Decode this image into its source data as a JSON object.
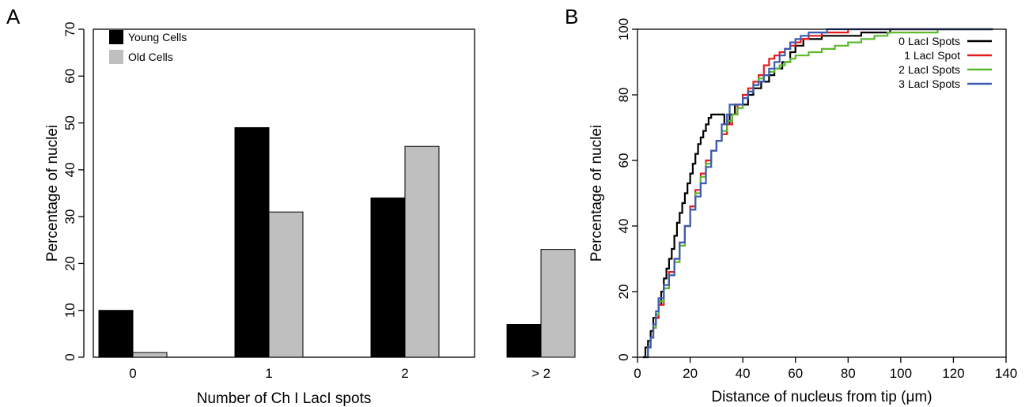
{
  "panels": {
    "a_label": "A",
    "b_label": "B"
  },
  "chart_data": [
    {
      "type": "bar",
      "title": "",
      "xlabel": "Number of Ch I LacI spots",
      "ylabel": "Percentage of nuclei",
      "categories": [
        "0",
        "1",
        "2",
        "> 2"
      ],
      "series": [
        {
          "name": "Young Cells",
          "color": "#000000",
          "values": [
            10,
            49,
            34,
            7
          ]
        },
        {
          "name": "Old Cells",
          "color": "#bfbfbf",
          "values": [
            1,
            31,
            45,
            23
          ]
        }
      ],
      "ylim": [
        0,
        70
      ],
      "yticks": [
        0,
        10,
        20,
        30,
        40,
        50,
        60,
        70
      ],
      "legend": "top-left",
      "grid": false
    },
    {
      "type": "line",
      "step": true,
      "title": "",
      "xlabel": "Distance of nucleus from tip (μm)",
      "ylabel": "Percentage of nuclei",
      "xlim": [
        0,
        140
      ],
      "ylim": [
        0,
        100
      ],
      "xticks": [
        0,
        20,
        40,
        60,
        80,
        100,
        120,
        140
      ],
      "yticks": [
        0,
        20,
        40,
        60,
        80,
        100
      ],
      "legend": "top-right",
      "grid": false,
      "series": [
        {
          "name": "0 LacI Spots",
          "color": "#000000",
          "points": [
            [
              2,
              0
            ],
            [
              3,
              3
            ],
            [
              4,
              5
            ],
            [
              5,
              8
            ],
            [
              6,
              12
            ],
            [
              8,
              16
            ],
            [
              9,
              20
            ],
            [
              10,
              24
            ],
            [
              11,
              27
            ],
            [
              12,
              30
            ],
            [
              13,
              33
            ],
            [
              14,
              37
            ],
            [
              15,
              41
            ],
            [
              16,
              44
            ],
            [
              17,
              47
            ],
            [
              18,
              50
            ],
            [
              19,
              53
            ],
            [
              20,
              56
            ],
            [
              21,
              59
            ],
            [
              22,
              62
            ],
            [
              23,
              65
            ],
            [
              24,
              67
            ],
            [
              25,
              69
            ],
            [
              26,
              71
            ],
            [
              27,
              73
            ],
            [
              28,
              74
            ],
            [
              32,
              74
            ],
            [
              33,
              71
            ],
            [
              35,
              74
            ],
            [
              37,
              77
            ],
            [
              40,
              77
            ],
            [
              42,
              80
            ],
            [
              44,
              82
            ],
            [
              47,
              84
            ],
            [
              50,
              86
            ],
            [
              52,
              88
            ],
            [
              55,
              90
            ],
            [
              58,
              93
            ],
            [
              60,
              95
            ],
            [
              63,
              97
            ],
            [
              70,
              98
            ],
            [
              80,
              98
            ],
            [
              85,
              99
            ],
            [
              95,
              99
            ],
            [
              96,
              100
            ],
            [
              135,
              100
            ]
          ]
        },
        {
          "name": "1 LacI Spot",
          "color": "#e41a1c",
          "points": [
            [
              3,
              0
            ],
            [
              4,
              3
            ],
            [
              5,
              6
            ],
            [
              6,
              9
            ],
            [
              7,
              12
            ],
            [
              8,
              16
            ],
            [
              10,
              21
            ],
            [
              12,
              26
            ],
            [
              14,
              30
            ],
            [
              16,
              35
            ],
            [
              18,
              40
            ],
            [
              20,
              46
            ],
            [
              22,
              51
            ],
            [
              24,
              56
            ],
            [
              26,
              60
            ],
            [
              28,
              63
            ],
            [
              30,
              66
            ],
            [
              32,
              68
            ],
            [
              34,
              71
            ],
            [
              36,
              74
            ],
            [
              38,
              77
            ],
            [
              40,
              80
            ],
            [
              42,
              82
            ],
            [
              44,
              84
            ],
            [
              46,
              86
            ],
            [
              48,
              89
            ],
            [
              50,
              91
            ],
            [
              52,
              92
            ],
            [
              54,
              93
            ],
            [
              56,
              94
            ],
            [
              58,
              95
            ],
            [
              60,
              96
            ],
            [
              62,
              97
            ],
            [
              65,
              98
            ],
            [
              70,
              99
            ],
            [
              75,
              99
            ],
            [
              80,
              100
            ],
            [
              135,
              100
            ]
          ]
        },
        {
          "name": "2 LacI Spots",
          "color": "#5cb82c",
          "points": [
            [
              3,
              0
            ],
            [
              4,
              3
            ],
            [
              5,
              6
            ],
            [
              6,
              9
            ],
            [
              7,
              13
            ],
            [
              8,
              17
            ],
            [
              10,
              21
            ],
            [
              12,
              25
            ],
            [
              14,
              29
            ],
            [
              16,
              34
            ],
            [
              18,
              40
            ],
            [
              20,
              45
            ],
            [
              22,
              50
            ],
            [
              24,
              55
            ],
            [
              26,
              59
            ],
            [
              28,
              63
            ],
            [
              30,
              66
            ],
            [
              32,
              69
            ],
            [
              34,
              72
            ],
            [
              36,
              74
            ],
            [
              38,
              76
            ],
            [
              40,
              79
            ],
            [
              42,
              81
            ],
            [
              44,
              83
            ],
            [
              46,
              85
            ],
            [
              48,
              86
            ],
            [
              50,
              87
            ],
            [
              52,
              88
            ],
            [
              54,
              89
            ],
            [
              56,
              90
            ],
            [
              58,
              91
            ],
            [
              60,
              92
            ],
            [
              62,
              92
            ],
            [
              65,
              93
            ],
            [
              70,
              94
            ],
            [
              75,
              95
            ],
            [
              80,
              96
            ],
            [
              85,
              97
            ],
            [
              90,
              98
            ],
            [
              95,
              99
            ],
            [
              100,
              99
            ],
            [
              110,
              99
            ],
            [
              114,
              100
            ],
            [
              135,
              100
            ]
          ]
        },
        {
          "name": "3 LacI Spots",
          "color": "#3b5bb5",
          "points": [
            [
              3,
              0
            ],
            [
              4,
              3
            ],
            [
              5,
              6
            ],
            [
              6,
              10
            ],
            [
              7,
              14
            ],
            [
              8,
              18
            ],
            [
              10,
              22
            ],
            [
              12,
              25
            ],
            [
              14,
              30
            ],
            [
              16,
              35
            ],
            [
              18,
              40
            ],
            [
              20,
              45
            ],
            [
              22,
              49
            ],
            [
              24,
              53
            ],
            [
              26,
              58
            ],
            [
              28,
              63
            ],
            [
              30,
              66
            ],
            [
              32,
              71
            ],
            [
              34,
              74
            ],
            [
              35,
              77
            ],
            [
              38,
              77
            ],
            [
              40,
              79
            ],
            [
              42,
              81
            ],
            [
              44,
              83
            ],
            [
              46,
              84
            ],
            [
              48,
              86
            ],
            [
              50,
              88
            ],
            [
              52,
              90
            ],
            [
              54,
              92
            ],
            [
              56,
              94
            ],
            [
              58,
              96
            ],
            [
              60,
              97
            ],
            [
              62,
              98
            ],
            [
              65,
              99
            ],
            [
              70,
              99
            ],
            [
              72,
              100
            ],
            [
              135,
              100
            ]
          ]
        }
      ]
    }
  ]
}
